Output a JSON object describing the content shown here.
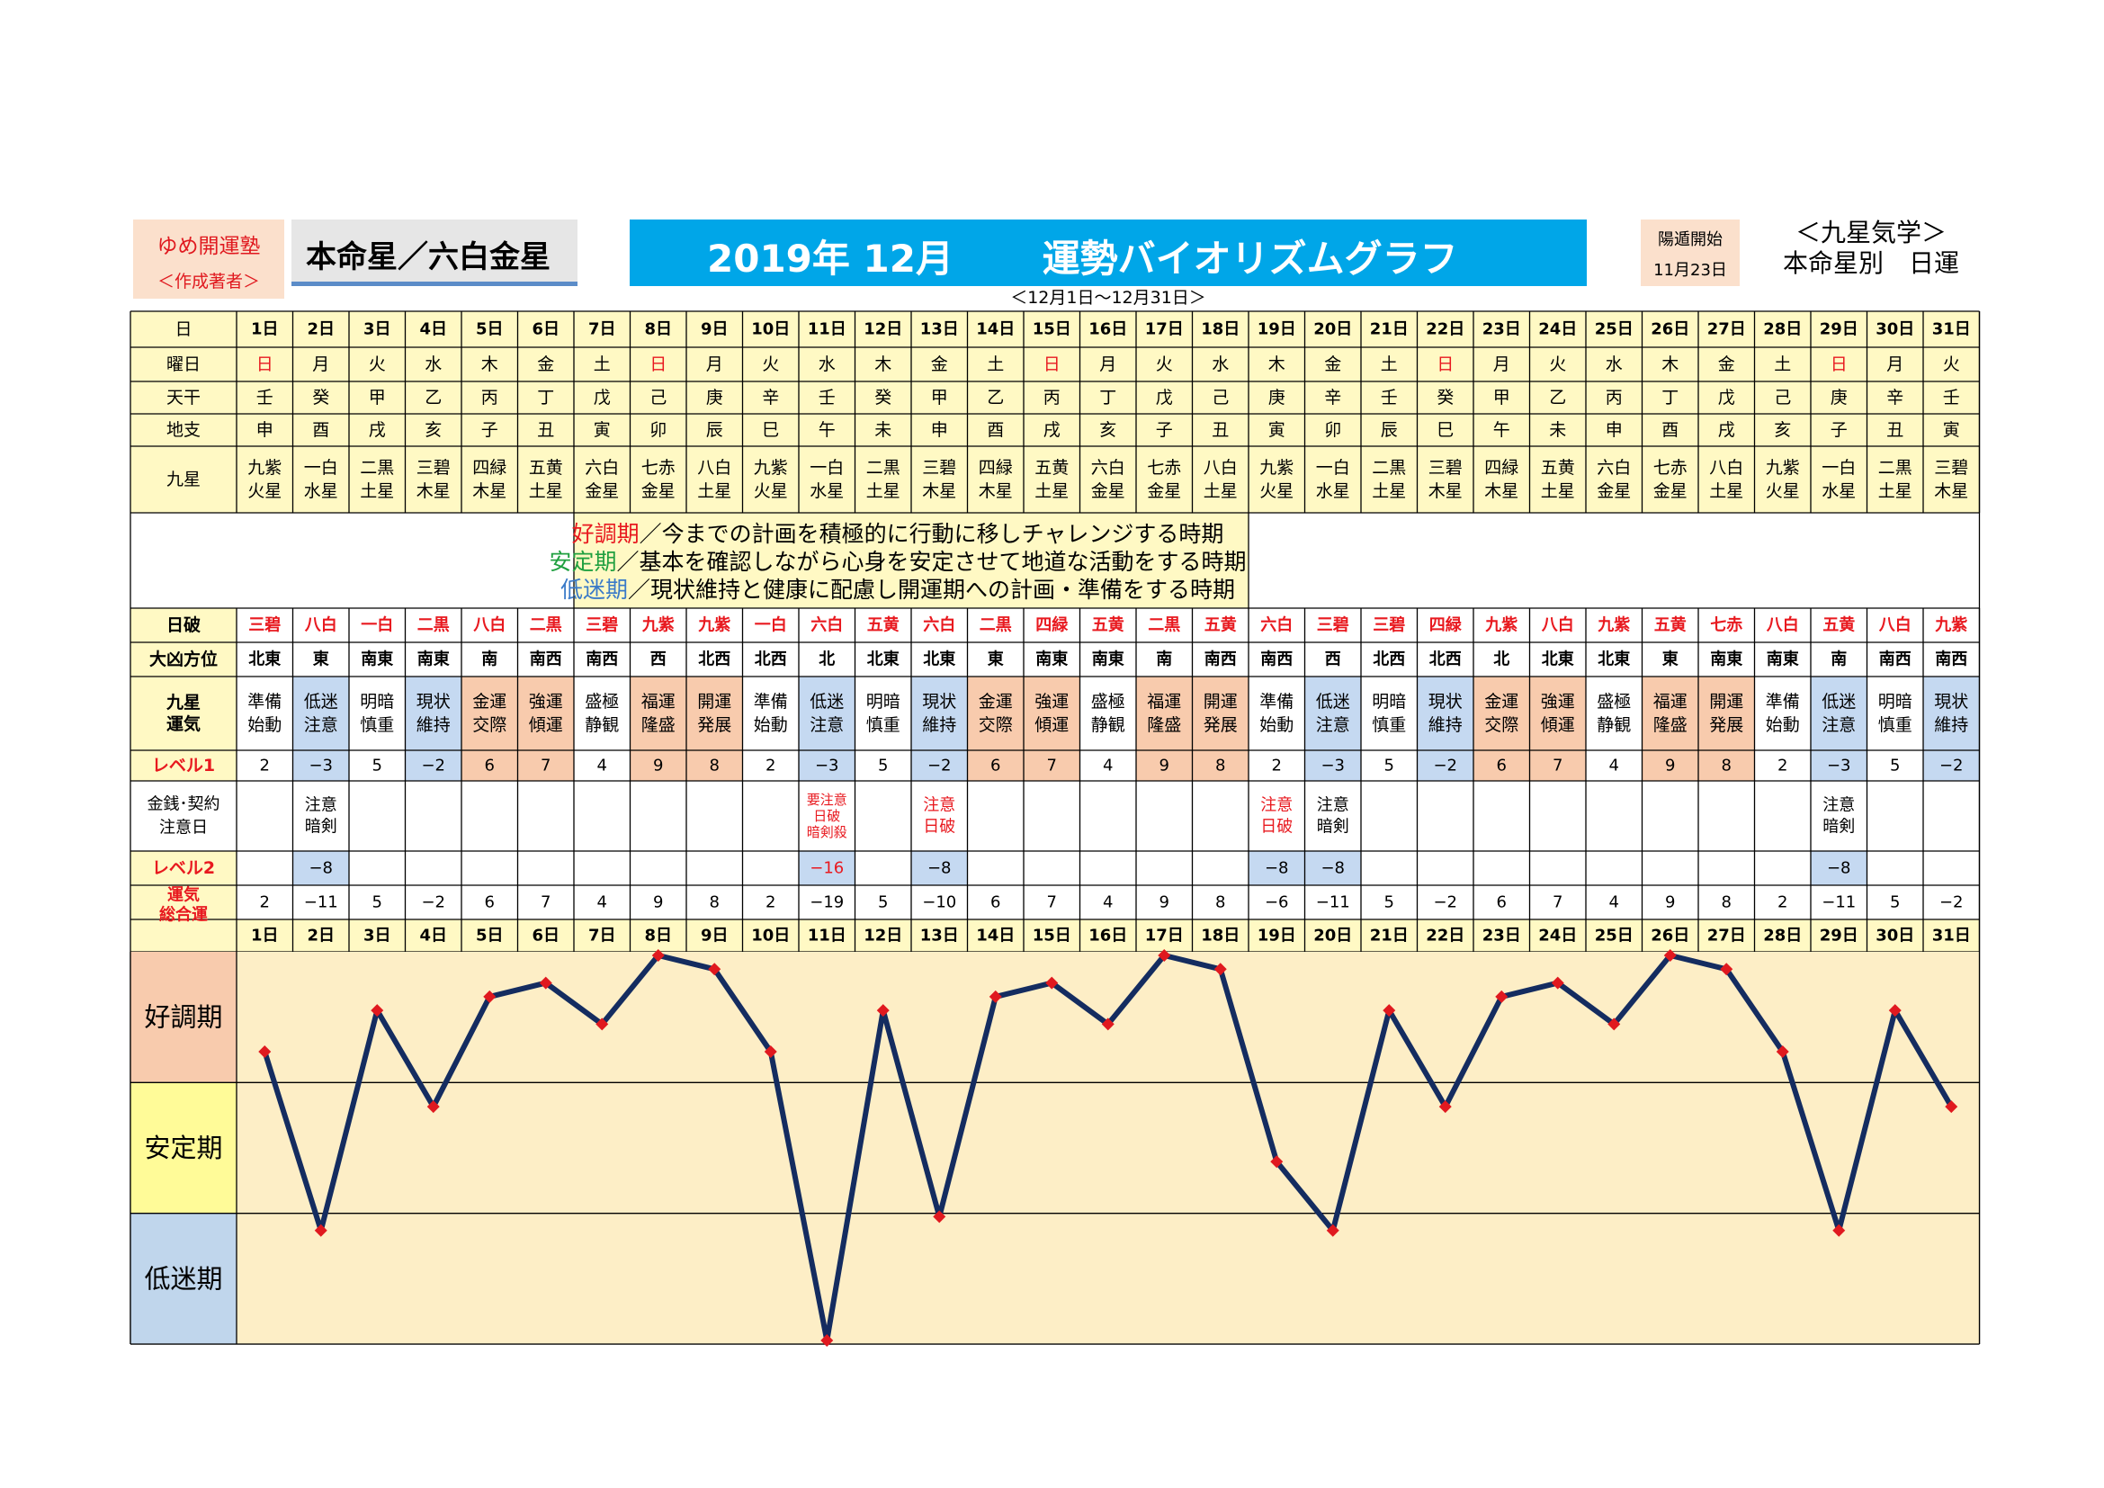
{
  "header": {
    "brand_name": "ゆめ開運塾",
    "brand_sub": "＜作成著者＞",
    "honmei": "本命星／六白金星",
    "banner": "2019年 12月　　 運勢バイオリズムグラフ",
    "date_range": "＜12月1日～12月31日＞",
    "yang_start_label": "陽遁開始",
    "yang_start_date": "11月23日",
    "method": "＜九星気学＞",
    "method_sub": "本命星別　日運"
  },
  "row_labels": {
    "day": "日",
    "weekday": "曜日",
    "tenkan": "天干",
    "chishi": "地支",
    "kyusei": "九星",
    "hakai": "日破",
    "direction": "大凶方位",
    "unki": "九星運気",
    "level1": "レベル1",
    "caution": [
      "金銭･契約",
      "注意日"
    ],
    "level2": "レベル2",
    "total": [
      "運気",
      "総合運"
    ]
  },
  "legend": [
    {
      "term": "好調期",
      "desc": "／今までの計画を積極的に行動に移しチャレンジする時期",
      "color": "#e8191f"
    },
    {
      "term": "安定期",
      "desc": "／基本を確認しながら心身を安定させて地道な活動をする時期",
      "color": "#20a040"
    },
    {
      "term": "低迷期",
      "desc": "／現状維持と健康に配慮し開運期への計画・準備をする時期",
      "color": "#3a7ac8"
    }
  ],
  "days": [
    "1日",
    "2日",
    "3日",
    "4日",
    "5日",
    "6日",
    "7日",
    "8日",
    "9日",
    "10日",
    "11日",
    "12日",
    "13日",
    "14日",
    "15日",
    "16日",
    "17日",
    "18日",
    "19日",
    "20日",
    "21日",
    "22日",
    "23日",
    "24日",
    "25日",
    "26日",
    "27日",
    "28日",
    "29日",
    "30日",
    "31日"
  ],
  "weekdays": [
    "日",
    "月",
    "火",
    "水",
    "木",
    "金",
    "土",
    "日",
    "月",
    "火",
    "水",
    "木",
    "金",
    "土",
    "日",
    "月",
    "火",
    "水",
    "木",
    "金",
    "土",
    "日",
    "月",
    "火",
    "水",
    "木",
    "金",
    "土",
    "日",
    "月",
    "火"
  ],
  "tenkan": [
    "壬",
    "癸",
    "甲",
    "乙",
    "丙",
    "丁",
    "戊",
    "己",
    "庚",
    "辛",
    "壬",
    "癸",
    "甲",
    "乙",
    "丙",
    "丁",
    "戊",
    "己",
    "庚",
    "辛",
    "壬",
    "癸",
    "甲",
    "乙",
    "丙",
    "丁",
    "戊",
    "己",
    "庚",
    "辛",
    "壬"
  ],
  "chishi": [
    "申",
    "酉",
    "戌",
    "亥",
    "子",
    "丑",
    "寅",
    "卯",
    "辰",
    "巳",
    "午",
    "未",
    "申",
    "酉",
    "戌",
    "亥",
    "子",
    "丑",
    "寅",
    "卯",
    "辰",
    "巳",
    "午",
    "未",
    "申",
    "酉",
    "戌",
    "亥",
    "子",
    "丑",
    "寅"
  ],
  "kyusei": [
    [
      "九紫",
      "火星"
    ],
    [
      "一白",
      "水星"
    ],
    [
      "二黒",
      "土星"
    ],
    [
      "三碧",
      "木星"
    ],
    [
      "四緑",
      "木星"
    ],
    [
      "五黄",
      "土星"
    ],
    [
      "六白",
      "金星"
    ],
    [
      "七赤",
      "金星"
    ],
    [
      "八白",
      "土星"
    ],
    [
      "九紫",
      "火星"
    ],
    [
      "一白",
      "水星"
    ],
    [
      "二黒",
      "土星"
    ],
    [
      "三碧",
      "木星"
    ],
    [
      "四緑",
      "木星"
    ],
    [
      "五黄",
      "土星"
    ],
    [
      "六白",
      "金星"
    ],
    [
      "七赤",
      "金星"
    ],
    [
      "八白",
      "土星"
    ],
    [
      "九紫",
      "火星"
    ],
    [
      "一白",
      "水星"
    ],
    [
      "二黒",
      "土星"
    ],
    [
      "三碧",
      "木星"
    ],
    [
      "四緑",
      "木星"
    ],
    [
      "五黄",
      "土星"
    ],
    [
      "六白",
      "金星"
    ],
    [
      "七赤",
      "金星"
    ],
    [
      "八白",
      "土星"
    ],
    [
      "九紫",
      "火星"
    ],
    [
      "一白",
      "水星"
    ],
    [
      "二黒",
      "土星"
    ],
    [
      "三碧",
      "木星"
    ]
  ],
  "hakai": [
    "三碧",
    "八白",
    "一白",
    "二黒",
    "八白",
    "二黒",
    "三碧",
    "九紫",
    "九紫",
    "一白",
    "六白",
    "五黄",
    "六白",
    "二黒",
    "四緑",
    "五黄",
    "二黒",
    "五黄",
    "六白",
    "三碧",
    "三碧",
    "四緑",
    "九紫",
    "八白",
    "九紫",
    "五黄",
    "七赤",
    "八白",
    "五黄",
    "八白",
    "九紫"
  ],
  "direction": [
    "北東",
    "東",
    "南東",
    "南東",
    "南",
    "南西",
    "南西",
    "西",
    "北西",
    "北西",
    "北",
    "北東",
    "北東",
    "東",
    "南東",
    "南東",
    "南",
    "南西",
    "南西",
    "西",
    "北西",
    "北西",
    "北",
    "北東",
    "北東",
    "東",
    "南東",
    "南東",
    "南",
    "南西",
    "南西"
  ],
  "unki": [
    [
      "準備",
      "始動"
    ],
    [
      "低迷",
      "注意"
    ],
    [
      "明暗",
      "慎重"
    ],
    [
      "現状",
      "維持"
    ],
    [
      "金運",
      "交際"
    ],
    [
      "強運",
      "傾運"
    ],
    [
      "盛極",
      "静観"
    ],
    [
      "福運",
      "隆盛"
    ],
    [
      "開運",
      "発展"
    ],
    [
      "準備",
      "始動"
    ],
    [
      "低迷",
      "注意"
    ],
    [
      "明暗",
      "慎重"
    ],
    [
      "現状",
      "維持"
    ],
    [
      "金運",
      "交際"
    ],
    [
      "強運",
      "傾運"
    ],
    [
      "盛極",
      "静観"
    ],
    [
      "福運",
      "隆盛"
    ],
    [
      "開運",
      "発展"
    ],
    [
      "準備",
      "始動"
    ],
    [
      "低迷",
      "注意"
    ],
    [
      "明暗",
      "慎重"
    ],
    [
      "現状",
      "維持"
    ],
    [
      "金運",
      "交際"
    ],
    [
      "強運",
      "傾運"
    ],
    [
      "盛極",
      "静観"
    ],
    [
      "福運",
      "隆盛"
    ],
    [
      "開運",
      "発展"
    ],
    [
      "準備",
      "始動"
    ],
    [
      "低迷",
      "注意"
    ],
    [
      "明暗",
      "慎重"
    ],
    [
      "現状",
      "維持"
    ]
  ],
  "level1": [
    2,
    -3,
    5,
    -2,
    6,
    7,
    4,
    9,
    8,
    2,
    -3,
    5,
    -2,
    6,
    7,
    4,
    9,
    8,
    2,
    -3,
    5,
    -2,
    6,
    7,
    4,
    9,
    8,
    2,
    -3,
    5,
    -2
  ],
  "caution": [
    null,
    [
      "注意",
      "暗剣"
    ],
    null,
    null,
    null,
    null,
    null,
    null,
    null,
    null,
    [
      "要注意",
      "日破",
      "暗剣殺"
    ],
    null,
    [
      "注意",
      "日破"
    ],
    null,
    null,
    null,
    null,
    null,
    [
      "注意",
      "日破"
    ],
    [
      "注意",
      "暗剣"
    ],
    null,
    null,
    null,
    null,
    null,
    null,
    null,
    null,
    [
      "注意",
      "暗剣"
    ],
    null,
    null
  ],
  "caution_red": [
    false,
    false,
    false,
    false,
    false,
    false,
    false,
    false,
    false,
    false,
    true,
    false,
    true,
    false,
    false,
    false,
    false,
    false,
    true,
    false,
    false,
    false,
    false,
    false,
    false,
    false,
    false,
    false,
    false,
    false,
    false
  ],
  "level2": [
    null,
    -8,
    null,
    null,
    null,
    null,
    null,
    null,
    null,
    null,
    -16,
    null,
    -8,
    null,
    null,
    null,
    null,
    null,
    -8,
    -8,
    null,
    null,
    null,
    null,
    null,
    null,
    null,
    null,
    -8,
    null,
    null
  ],
  "total_display": [
    "2",
    "−11",
    "5",
    "−2",
    "6",
    "7",
    "4",
    "9",
    "8",
    "2",
    "−19",
    "5",
    "−10",
    "6",
    "7",
    "4",
    "9",
    "8",
    "−6",
    "−11",
    "5",
    "−2",
    "6",
    "7",
    "4",
    "9",
    "8",
    "2",
    "−11",
    "5",
    "−2"
  ],
  "colors": {
    "grid": "#000000",
    "header_bg": "#fff9c4",
    "red": "#e8191f",
    "good_bg": "#f8cbad",
    "low_bg": "#c5d9f1",
    "chart_bg": "#fdeec6",
    "zone_good": "#f8cbad",
    "zone_stable": "#fffb98",
    "zone_low": "#c0d6ec",
    "line": "#142c60",
    "marker": "#e0191f"
  },
  "chart_data": {
    "type": "line",
    "categories": [
      "1日",
      "2日",
      "3日",
      "4日",
      "5日",
      "6日",
      "7日",
      "8日",
      "9日",
      "10日",
      "11日",
      "12日",
      "13日",
      "14日",
      "15日",
      "16日",
      "17日",
      "18日",
      "19日",
      "20日",
      "21日",
      "22日",
      "23日",
      "24日",
      "25日",
      "26日",
      "27日",
      "28日",
      "29日",
      "30日",
      "31日"
    ],
    "series": [
      {
        "values": [
          2,
          -11,
          5,
          -2,
          6,
          7,
          4,
          9,
          8,
          2,
          -19,
          5,
          -10,
          6,
          7,
          4,
          9,
          8,
          -6,
          -11,
          5,
          -2,
          6,
          7,
          4,
          9,
          8,
          2,
          -11,
          5,
          -2
        ]
      }
    ],
    "zones": [
      "好調期",
      "安定期",
      "低迷期"
    ],
    "ylim": [
      -19,
      9
    ],
    "grid": true
  }
}
